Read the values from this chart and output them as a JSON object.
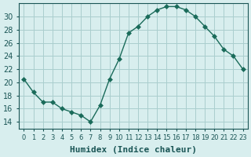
{
  "x": [
    0,
    1,
    2,
    3,
    4,
    5,
    6,
    7,
    8,
    9,
    10,
    11,
    12,
    13,
    14,
    15,
    16,
    17,
    18,
    19,
    20,
    21,
    22,
    23
  ],
  "y": [
    20.5,
    18.5,
    17.0,
    17.0,
    16.0,
    15.5,
    15.0,
    14.0,
    16.5,
    20.5,
    23.5,
    27.5,
    28.5,
    30.0,
    31.0,
    31.5,
    31.5,
    31.0,
    30.0,
    28.5,
    27.0,
    25.0,
    24.0,
    22.0
  ],
  "xlabel": "Humidex (Indice chaleur)",
  "ylabel": "",
  "ylim": [
    13,
    32
  ],
  "yticks": [
    14,
    16,
    18,
    20,
    22,
    24,
    26,
    28,
    30
  ],
  "xlim": [
    -0.5,
    23.5
  ],
  "line_color": "#1a6b5a",
  "marker": "D",
  "marker_size": 3,
  "bg_color": "#d8eeee",
  "grid_color": "#aacece",
  "font_color": "#1a5555",
  "tick_fontsize": 7,
  "xlabel_fontsize": 8
}
